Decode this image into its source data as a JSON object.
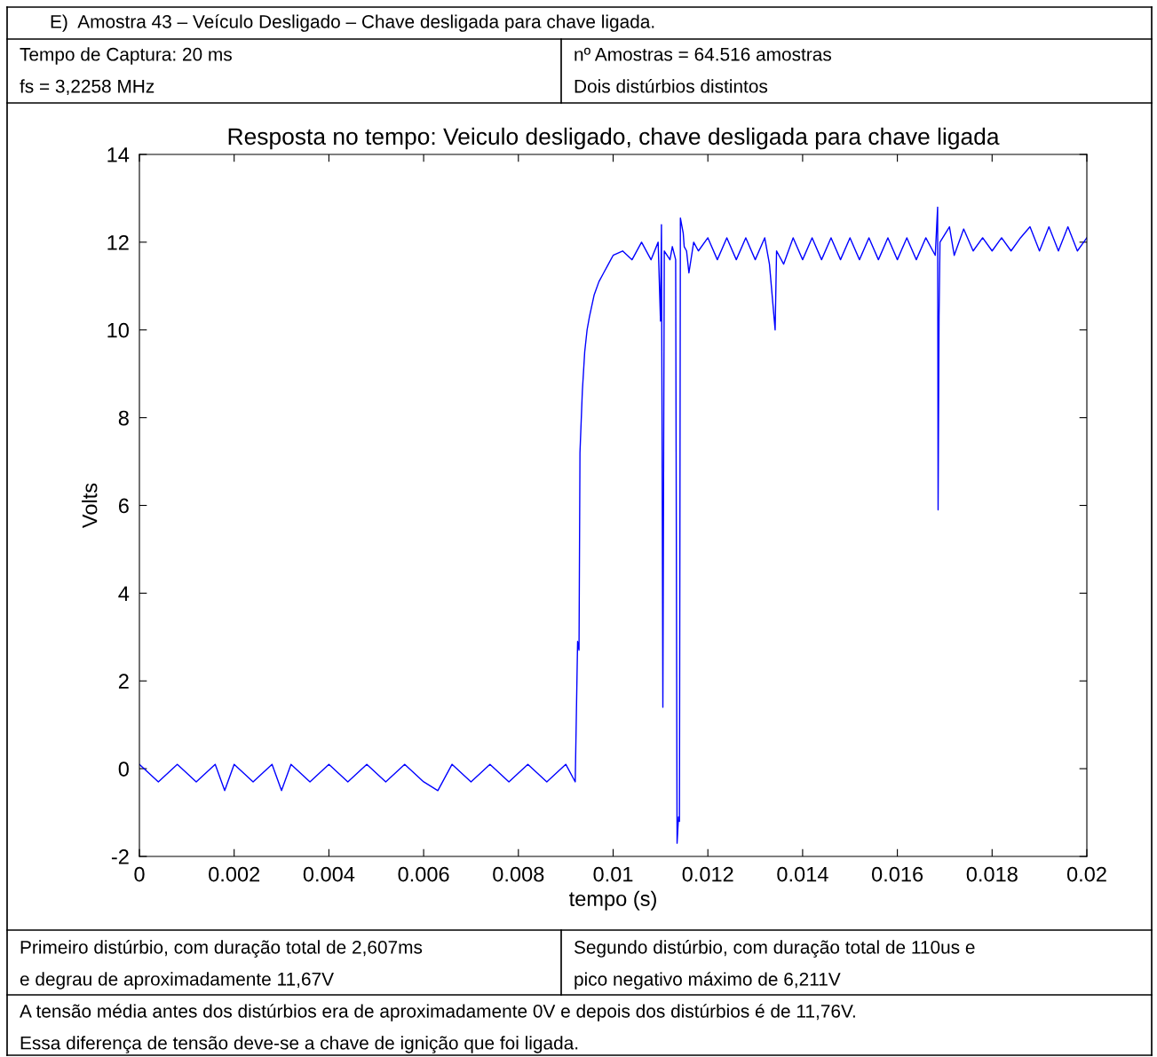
{
  "chart_data": {
    "type": "line",
    "title": "Resposta no tempo: Veiculo desligado, chave desligada para chave ligada",
    "xlabel": "tempo (s)",
    "ylabel": "Volts",
    "xlim": [
      0,
      0.02
    ],
    "xticks": [
      0,
      0.002,
      0.004,
      0.006,
      0.008,
      0.01,
      0.012,
      0.014,
      0.016,
      0.018,
      0.02
    ],
    "ylim": [
      -2,
      14
    ],
    "yticks": [
      {
        "value": -2,
        "label": "-2"
      },
      0,
      2,
      4,
      6,
      8,
      10,
      12,
      14
    ],
    "grid": false,
    "series": [
      {
        "color": "#0000ff",
        "x": [
          0,
          0.0004,
          0.0008,
          0.0012,
          0.0016,
          0.0018,
          0.002,
          0.0024,
          0.0028,
          0.003,
          0.0032,
          0.0036,
          0.004,
          0.0044,
          0.0048,
          0.0052,
          0.0056,
          0.006,
          0.0063,
          0.0066,
          0.007,
          0.0074,
          0.0078,
          0.0082,
          0.0086,
          0.009,
          0.0092,
          0.00925,
          0.00928,
          0.0093,
          0.00935,
          0.0094,
          0.00945,
          0.0095,
          0.0096,
          0.0097,
          0.0098,
          0.0099,
          0.01,
          0.0102,
          0.0104,
          0.0106,
          0.0108,
          0.01095,
          0.011,
          0.01102,
          0.01105,
          0.01108,
          0.0112,
          0.01125,
          0.01132,
          0.01135,
          0.01138,
          0.0114,
          0.01142,
          0.01148,
          0.0115,
          0.01155,
          0.0116,
          0.0117,
          0.0118,
          0.012,
          0.0122,
          0.0124,
          0.0126,
          0.0128,
          0.013,
          0.0132,
          0.0133,
          0.01342,
          0.01345,
          0.0136,
          0.0138,
          0.014,
          0.0142,
          0.0144,
          0.0146,
          0.0148,
          0.015,
          0.0152,
          0.0154,
          0.0156,
          0.0158,
          0.016,
          0.0162,
          0.0164,
          0.0166,
          0.0168,
          0.01685,
          0.01686,
          0.01688,
          0.0169,
          0.0171,
          0.0172,
          0.0174,
          0.0176,
          0.0178,
          0.018,
          0.0182,
          0.0184,
          0.0186,
          0.0188,
          0.019,
          0.0192,
          0.0194,
          0.0196,
          0.0198,
          0.02
        ],
        "values": [
          0.1,
          -0.3,
          0.1,
          -0.3,
          0.1,
          -0.5,
          0.1,
          -0.3,
          0.1,
          -0.5,
          0.1,
          -0.3,
          0.1,
          -0.3,
          0.1,
          -0.3,
          0.1,
          -0.3,
          -0.5,
          0.1,
          -0.3,
          0.1,
          -0.3,
          0.1,
          -0.3,
          0.1,
          -0.3,
          2.9,
          2.7,
          7.2,
          8.6,
          9.5,
          10.0,
          10.3,
          10.8,
          11.1,
          11.3,
          11.5,
          11.7,
          11.8,
          11.6,
          12.0,
          11.6,
          12.0,
          10.2,
          12.4,
          1.4,
          11.8,
          11.6,
          11.9,
          11.6,
          -1.7,
          -1.1,
          -1.2,
          12.55,
          12.2,
          11.9,
          11.8,
          11.3,
          12.0,
          11.8,
          12.1,
          11.6,
          12.1,
          11.6,
          12.1,
          11.6,
          12.1,
          11.5,
          10.0,
          11.8,
          11.5,
          12.1,
          11.6,
          12.1,
          11.6,
          12.1,
          11.6,
          12.1,
          11.6,
          12.1,
          11.6,
          12.1,
          11.6,
          12.1,
          11.6,
          12.1,
          11.7,
          12.8,
          5.9,
          10.3,
          12.0,
          12.35,
          11.7,
          12.3,
          11.8,
          12.1,
          11.8,
          12.1,
          11.8,
          12.1,
          12.35,
          11.8,
          12.35,
          11.8,
          12.35,
          11.8,
          12.1
        ]
      }
    ],
    "annotations": [
      "E)  Amostra 43 – Veículo Desligado – Chave desligada para chave ligada.",
      "Tempo de Captura: 20 ms",
      "fs = 3,2258 MHz",
      "nº Amostras = 64.516 amostras",
      "Dois distúrbios distintos",
      "Primeiro distúrbio, com duração total de 2,607ms",
      "e degrau de aproximadamente 11,67V",
      "Segundo distúrbio, com duração total de 110us e",
      "pico negativo máximo de 6,211V",
      "A tensão média antes dos distúrbios era de aproximadamente 0V e depois dos distúrbios é de 11,76V.",
      "Essa diferença de tensão deve-se a chave de ignição que foi ligada."
    ]
  }
}
